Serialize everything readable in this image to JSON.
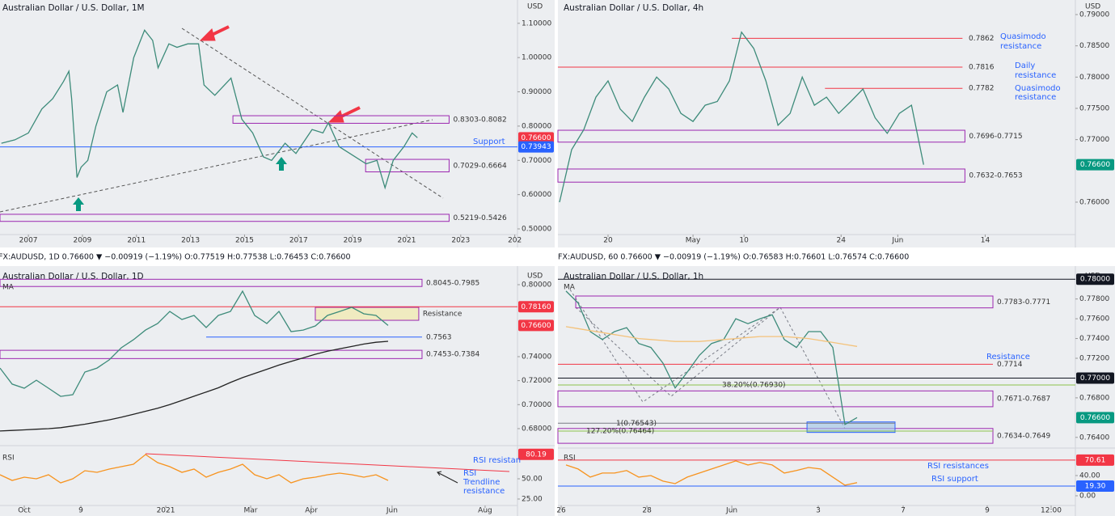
{
  "chart_data": [
    {
      "type": "line",
      "title": "Australian Dollar / U.S. Dollar, 1M",
      "unit": "USD",
      "xlim": [
        2005.95,
        2025.1
      ],
      "xticks": [
        2007,
        2009,
        2011,
        2013,
        2015,
        2017,
        2019,
        2021,
        2023,
        {
          "value": 2025,
          "label": "202"
        }
      ],
      "ylim": [
        0.4835,
        1.168
      ],
      "yticks": [
        {
          "value": 1.1,
          "label": "1.10000"
        },
        {
          "value": 1.0,
          "label": "1.00000"
        },
        {
          "value": 0.9,
          "label": "0.90000"
        },
        {
          "value": 0.8,
          "label": "0.80000"
        },
        {
          "value": 0.7,
          "label": "0.70000"
        },
        {
          "value": 0.6,
          "label": "0.60000"
        },
        {
          "value": 0.5,
          "label": "0.50000"
        }
      ],
      "x": [
        2006.0,
        2006.5,
        2007.0,
        2007.5,
        2007.9,
        2008.3,
        2008.5,
        2008.6,
        2008.8,
        2008.95,
        2009.2,
        2009.5,
        2009.9,
        2010.3,
        2010.5,
        2010.9,
        2011.3,
        2011.6,
        2011.8,
        2012.2,
        2012.5,
        2012.9,
        2013.3,
        2013.5,
        2013.9,
        2014.5,
        2014.9,
        2015.3,
        2015.7,
        2016.0,
        2016.5,
        2016.9,
        2017.5,
        2017.9,
        2018.1,
        2018.5,
        2018.9,
        2019.5,
        2019.9,
        2020.2,
        2020.5,
        2020.9,
        2021.2,
        2021.4
      ],
      "series": [
        {
          "color": "#3d8b7a",
          "values": [
            0.75,
            0.76,
            0.78,
            0.85,
            0.88,
            0.93,
            0.96,
            0.88,
            0.65,
            0.68,
            0.7,
            0.8,
            0.9,
            0.92,
            0.84,
            1.0,
            1.08,
            1.05,
            0.97,
            1.04,
            1.03,
            1.04,
            1.04,
            0.92,
            0.89,
            0.94,
            0.82,
            0.78,
            0.71,
            0.7,
            0.75,
            0.72,
            0.79,
            0.78,
            0.81,
            0.74,
            0.72,
            0.69,
            0.7,
            0.62,
            0.7,
            0.74,
            0.78,
            0.766
          ]
        }
      ],
      "levels": [
        {
          "value": 0.73943,
          "color": "#2962ff"
        }
      ],
      "zones": [
        {
          "label": "0.8303-0.8082",
          "from": 0.8303,
          "to": 0.8082,
          "x": [
            2014.57,
            2022.57
          ],
          "color": "#9c27b0"
        },
        {
          "label": "0.7029-0.6664",
          "from": 0.7029,
          "to": 0.6664,
          "x": [
            2019.48,
            2022.57
          ],
          "color": "#9c27b0"
        },
        {
          "label": "0.5219-0.5426",
          "from": 0.5219,
          "to": 0.5426,
          "x": [
            2005.95,
            2022.57
          ],
          "color": "#9c27b0"
        }
      ],
      "price_tags": [
        {
          "value": 0.766,
          "label": "0.76600",
          "color": "#f23645"
        },
        {
          "value": 0.73943,
          "label": "0.73943",
          "color": "#2962ff"
        }
      ],
      "notes": [
        "Support"
      ]
    },
    {
      "type": "line",
      "title": "Australian Dollar / U.S. Dollar, 4h",
      "unit": "USD",
      "xlim": [
        -0.13,
        42.5
      ],
      "xticks": [
        {
          "value": 4,
          "label": "20"
        },
        {
          "value": 11,
          "label": "May"
        },
        {
          "value": 15.2,
          "label": "10"
        },
        {
          "value": 23.2,
          "label": "24"
        },
        {
          "value": 27.87,
          "label": "Jun"
        },
        {
          "value": 35.07,
          "label": "14"
        }
      ],
      "ylim": [
        0.75482,
        0.79233
      ],
      "yticks": [
        {
          "value": 0.79,
          "label": "0.79000"
        },
        {
          "value": 0.785,
          "label": "0.78500"
        },
        {
          "value": 0.78,
          "label": "0.78000"
        },
        {
          "value": 0.775,
          "label": "0.77500"
        },
        {
          "value": 0.77,
          "label": "0.77000"
        },
        {
          "value": 0.76,
          "label": "0.76000"
        }
      ],
      "series": [
        {
          "color": "#3d8b7a",
          "values": [
            0.76,
            0.7684,
            0.7716,
            0.7768,
            0.7794,
            0.7749,
            0.7729,
            0.7768,
            0.78,
            0.7781,
            0.7742,
            0.7729,
            0.7755,
            0.7761,
            0.7794,
            0.7872,
            0.7846,
            0.7794,
            0.7723,
            0.7742,
            0.78,
            0.7755,
            0.7768,
            0.7742,
            0.7761,
            0.7781,
            0.7735,
            0.771,
            0.7742,
            0.7755,
            0.766
          ]
        }
      ],
      "levels": [
        {
          "value": 0.7862,
          "x": [
            14.2,
            33.2
          ],
          "color": "#f23645",
          "value_printed": true
        },
        {
          "value": 0.7816,
          "x": [
            -0.13,
            33.2
          ],
          "color": "#f23645",
          "value_printed": true
        },
        {
          "value": 0.7782,
          "x": [
            21.87,
            33.2
          ],
          "color": "#f23645",
          "value_printed": true
        }
      ],
      "zones": [
        {
          "label": "0.7696-0.7715",
          "from": 0.7696,
          "to": 0.7715,
          "x": [
            -0.13,
            33.4
          ],
          "color": "#9c27b0"
        },
        {
          "label": "0.7632-0.7653",
          "from": 0.7632,
          "to": 0.7653,
          "x": [
            -0.13,
            33.4
          ],
          "color": "#9c27b0"
        }
      ],
      "price_tags": [
        {
          "value": 0.766,
          "label": "0.76600",
          "color": "#089981"
        }
      ],
      "notes": [
        "Quasimodo",
        "resistance",
        "Daily",
        "resistance",
        "Quasimodo",
        "resistance"
      ]
    },
    {
      "type": "line",
      "title": "Australian Dollar / U.S. Dollar, 1D",
      "unit": "USD",
      "status": "FX:AUDUSD, 1D 0.76600 ▼ −0.00919 (−1.19%) O:0.77519 H:0.77538 L:0.76453 C:0.76600",
      "xlim": [
        0,
        42.67
      ],
      "xticks": [
        {
          "value": 2,
          "label": "Oct"
        },
        {
          "value": 6.67,
          "label": "9"
        },
        {
          "value": 13.67,
          "label": "2021"
        },
        {
          "value": 20.67,
          "label": "Mar"
        },
        {
          "value": 25.67,
          "label": "Apr"
        },
        {
          "value": 32.33,
          "label": "Jun"
        },
        {
          "value": 40,
          "label": "Aug"
        }
      ],
      "ylim": [
        0.6665,
        0.8128
      ],
      "yticks": [
        {
          "value": 0.8,
          "label": "0.80000"
        },
        {
          "value": 0.74,
          "label": "0.74000"
        },
        {
          "value": 0.72,
          "label": "0.72000"
        },
        {
          "value": 0.7,
          "label": "0.70000"
        },
        {
          "value": 0.68,
          "label": "0.68000"
        }
      ],
      "y2lim": [
        17,
        89
      ],
      "y2ticks": [
        {
          "value": 50,
          "label": "50.00"
        },
        {
          "value": 25,
          "label": "25.00"
        }
      ],
      "series": [
        {
          "color": "#3d8b7a",
          "values": [
            0.7305,
            0.7171,
            0.7137,
            0.7204,
            0.7137,
            0.7069,
            0.7083,
            0.7272,
            0.7305,
            0.7373,
            0.7474,
            0.7541,
            0.7622,
            0.7676,
            0.7777,
            0.771,
            0.7744,
            0.7643,
            0.7744,
            0.7777,
            0.7946,
            0.7744,
            0.7676,
            0.7777,
            0.7609,
            0.7622,
            0.7656,
            0.7744,
            0.7777,
            0.7811,
            0.7757,
            0.7744,
            0.766
          ]
        },
        {
          "name": "MA",
          "color": "#222222",
          "values": [
            0.678,
            0.6785,
            0.679,
            0.6795,
            0.68,
            0.6808,
            0.6822,
            0.6837,
            0.6855,
            0.6873,
            0.6895,
            0.692,
            0.6945,
            0.697,
            0.7,
            0.7035,
            0.707,
            0.7105,
            0.714,
            0.7185,
            0.7225,
            0.726,
            0.7295,
            0.733,
            0.736,
            0.739,
            0.742,
            0.7445,
            0.7465,
            0.7485,
            0.7505,
            0.752,
            0.7528
          ]
        },
        {
          "name": "RSI",
          "color": "#f7931e",
          "axis": "y2",
          "values": [
            55,
            48,
            52,
            50,
            55,
            45,
            50,
            60,
            58,
            62,
            65,
            68,
            80,
            70,
            65,
            58,
            62,
            52,
            58,
            62,
            68,
            55,
            50,
            55,
            45,
            50,
            52,
            55,
            57,
            55,
            52,
            55,
            48
          ]
        }
      ],
      "levels": [
        {
          "value": 0.7816,
          "color": "#f23645"
        },
        {
          "value": 0.7563,
          "x": [
            17,
            34.8
          ],
          "color": "#2962ff",
          "value_printed": true
        }
      ],
      "zones": [
        {
          "label": "0.8045-0.7985",
          "from": 0.8045,
          "to": 0.7985,
          "x": [
            0,
            34.8
          ],
          "color": "#9c27b0"
        },
        {
          "label": "Resistance",
          "from": 0.7811,
          "to": 0.7703,
          "x": [
            26,
            34.53
          ],
          "color": "#9c27b0",
          "fill": "#f3e9a0"
        },
        {
          "label": "0.7453-0.7384",
          "from": 0.7453,
          "to": 0.7384,
          "x": [
            0,
            34.8
          ],
          "color": "#9c27b0"
        }
      ],
      "price_tags": [
        {
          "value": 0.7816,
          "label": "0.78160",
          "color": "#f23645"
        },
        {
          "value": 0.766,
          "label": "0.76600",
          "color": "#f23645"
        },
        {
          "value": 80.19,
          "color": "#f23645",
          "axis": "y2"
        }
      ],
      "notes": [
        "RSI resistan",
        "RSI",
        "Trendline",
        "resistance"
      ]
    },
    {
      "type": "line",
      "title": "Australian Dollar / U.S. Dollar, 1h",
      "unit": "USD",
      "status": "FX:AUDUSD, 60 0.76600 ▼ −0.00919 (−1.19%) O:0.76583 H:0.76601 L:0.76574 C:0.76600",
      "xlim": [
        -0.67,
        42
      ],
      "xticks": [
        {
          "value": -0.4,
          "label": "26"
        },
        {
          "value": 6.67,
          "label": "28"
        },
        {
          "value": 13.67,
          "label": "Jun"
        },
        {
          "value": 20.8,
          "label": "3"
        },
        {
          "value": 27.8,
          "label": "7"
        },
        {
          "value": 34.73,
          "label": "9"
        },
        {
          "value": 40,
          "label": "12:00"
        }
      ],
      "ylim": [
        0.763,
        0.781
      ],
      "yticks": [
        {
          "value": 0.778,
          "label": "0.77800"
        },
        {
          "value": 0.776,
          "label": "0.77600"
        },
        {
          "value": 0.774,
          "label": "0.77400"
        },
        {
          "value": 0.772,
          "label": "0.77200"
        },
        {
          "value": 0.768,
          "label": "0.76800"
        },
        {
          "value": 0.764,
          "label": "0.76400"
        }
      ],
      "y2lim": [
        -19.2,
        92.8
      ],
      "y2ticks": [
        {
          "value": 40,
          "label": "40.00"
        },
        {
          "value": 0,
          "label": "0.00"
        }
      ],
      "series": [
        {
          "color": "#3d8b7a",
          "values": [
            0.7788,
            0.7776,
            0.7747,
            0.7739,
            0.7747,
            0.7751,
            0.7735,
            0.7731,
            0.7715,
            0.769,
            0.7706,
            0.7723,
            0.7735,
            0.7739,
            0.776,
            0.7755,
            0.776,
            0.7764,
            0.7739,
            0.7731,
            0.7747,
            0.7747,
            0.7731,
            0.7653,
            0.766
          ]
        },
        {
          "name": "MA",
          "color": "#f4c27a",
          "values": [
            0.7752,
            0.775,
            0.7748,
            0.7746,
            0.7744,
            0.7742,
            0.774,
            0.7739,
            0.7738,
            0.7737,
            0.7737,
            0.7737,
            0.7738,
            0.7739,
            0.774,
            0.7741,
            0.7742,
            0.7742,
            0.7742,
            0.7741,
            0.774,
            0.7738,
            0.7736,
            0.7734,
            0.7732
          ]
        },
        {
          "name": "RSI",
          "color": "#f7931e",
          "axis": "y2",
          "values": [
            61,
            53,
            37,
            45,
            45,
            50,
            37,
            40,
            29,
            24,
            37,
            45,
            53,
            61,
            69,
            61,
            66,
            61,
            45,
            50,
            56,
            53,
            37,
            21,
            26
          ]
        }
      ],
      "levels": [
        {
          "value": 0.78,
          "color": "#131722"
        },
        {
          "value": 0.77,
          "color": "#131722"
        },
        {
          "value": 0.7714,
          "x": [
            -0.67,
            35.2
          ],
          "color": "#f23645",
          "value_printed": true
        },
        {
          "value": 0.7693,
          "label": "38.20%(0.76930)",
          "color": "#8bc34a"
        },
        {
          "value": 0.76543,
          "label": "1(0.76543)",
          "x": [
            -0.67,
            27.13
          ],
          "color": "#787b86"
        },
        {
          "value": 0.76464,
          "label": "127.20%(0.76464)",
          "x": [
            -0.67,
            35.2
          ],
          "color": "#8bc34a"
        },
        {
          "value": 70.61,
          "color": "#f23645",
          "axis": "y2"
        },
        {
          "value": 19.3,
          "color": "#2962ff",
          "axis": "y2"
        }
      ],
      "zones": [
        {
          "label": "0.7783-0.7771",
          "from": 0.7783,
          "to": 0.7771,
          "x": [
            0.8,
            35.2
          ],
          "color": "#9c27b0"
        },
        {
          "label": "0.7671-0.7687",
          "from": 0.7671,
          "to": 0.7687,
          "x": [
            -0.67,
            35.2
          ],
          "color": "#9c27b0"
        },
        {
          "label": "0.7634-0.7649",
          "from": 0.7634,
          "to": 0.7649,
          "x": [
            -0.67,
            35.2
          ],
          "color": "#9c27b0"
        },
        {
          "from": 0.76556,
          "to": 0.7645,
          "x": [
            19.87,
            27.13
          ],
          "color": "#2962ff",
          "fill": "#9cc3e6"
        }
      ],
      "price_tags": [
        {
          "value": 0.78,
          "label": "0.78000",
          "color": "#131722"
        },
        {
          "value": 0.77,
          "label": "0.77000",
          "color": "#131722"
        },
        {
          "value": 0.766,
          "label": "0.76600",
          "color": "#089981"
        },
        {
          "value": 70.61,
          "color": "#f23645",
          "axis": "y2"
        },
        {
          "value": 19.3,
          "label": "19.30",
          "color": "#2962ff",
          "axis": "y2"
        }
      ],
      "notes": [
        "Resistance",
        "RSI resistances",
        "RSI support"
      ]
    }
  ]
}
